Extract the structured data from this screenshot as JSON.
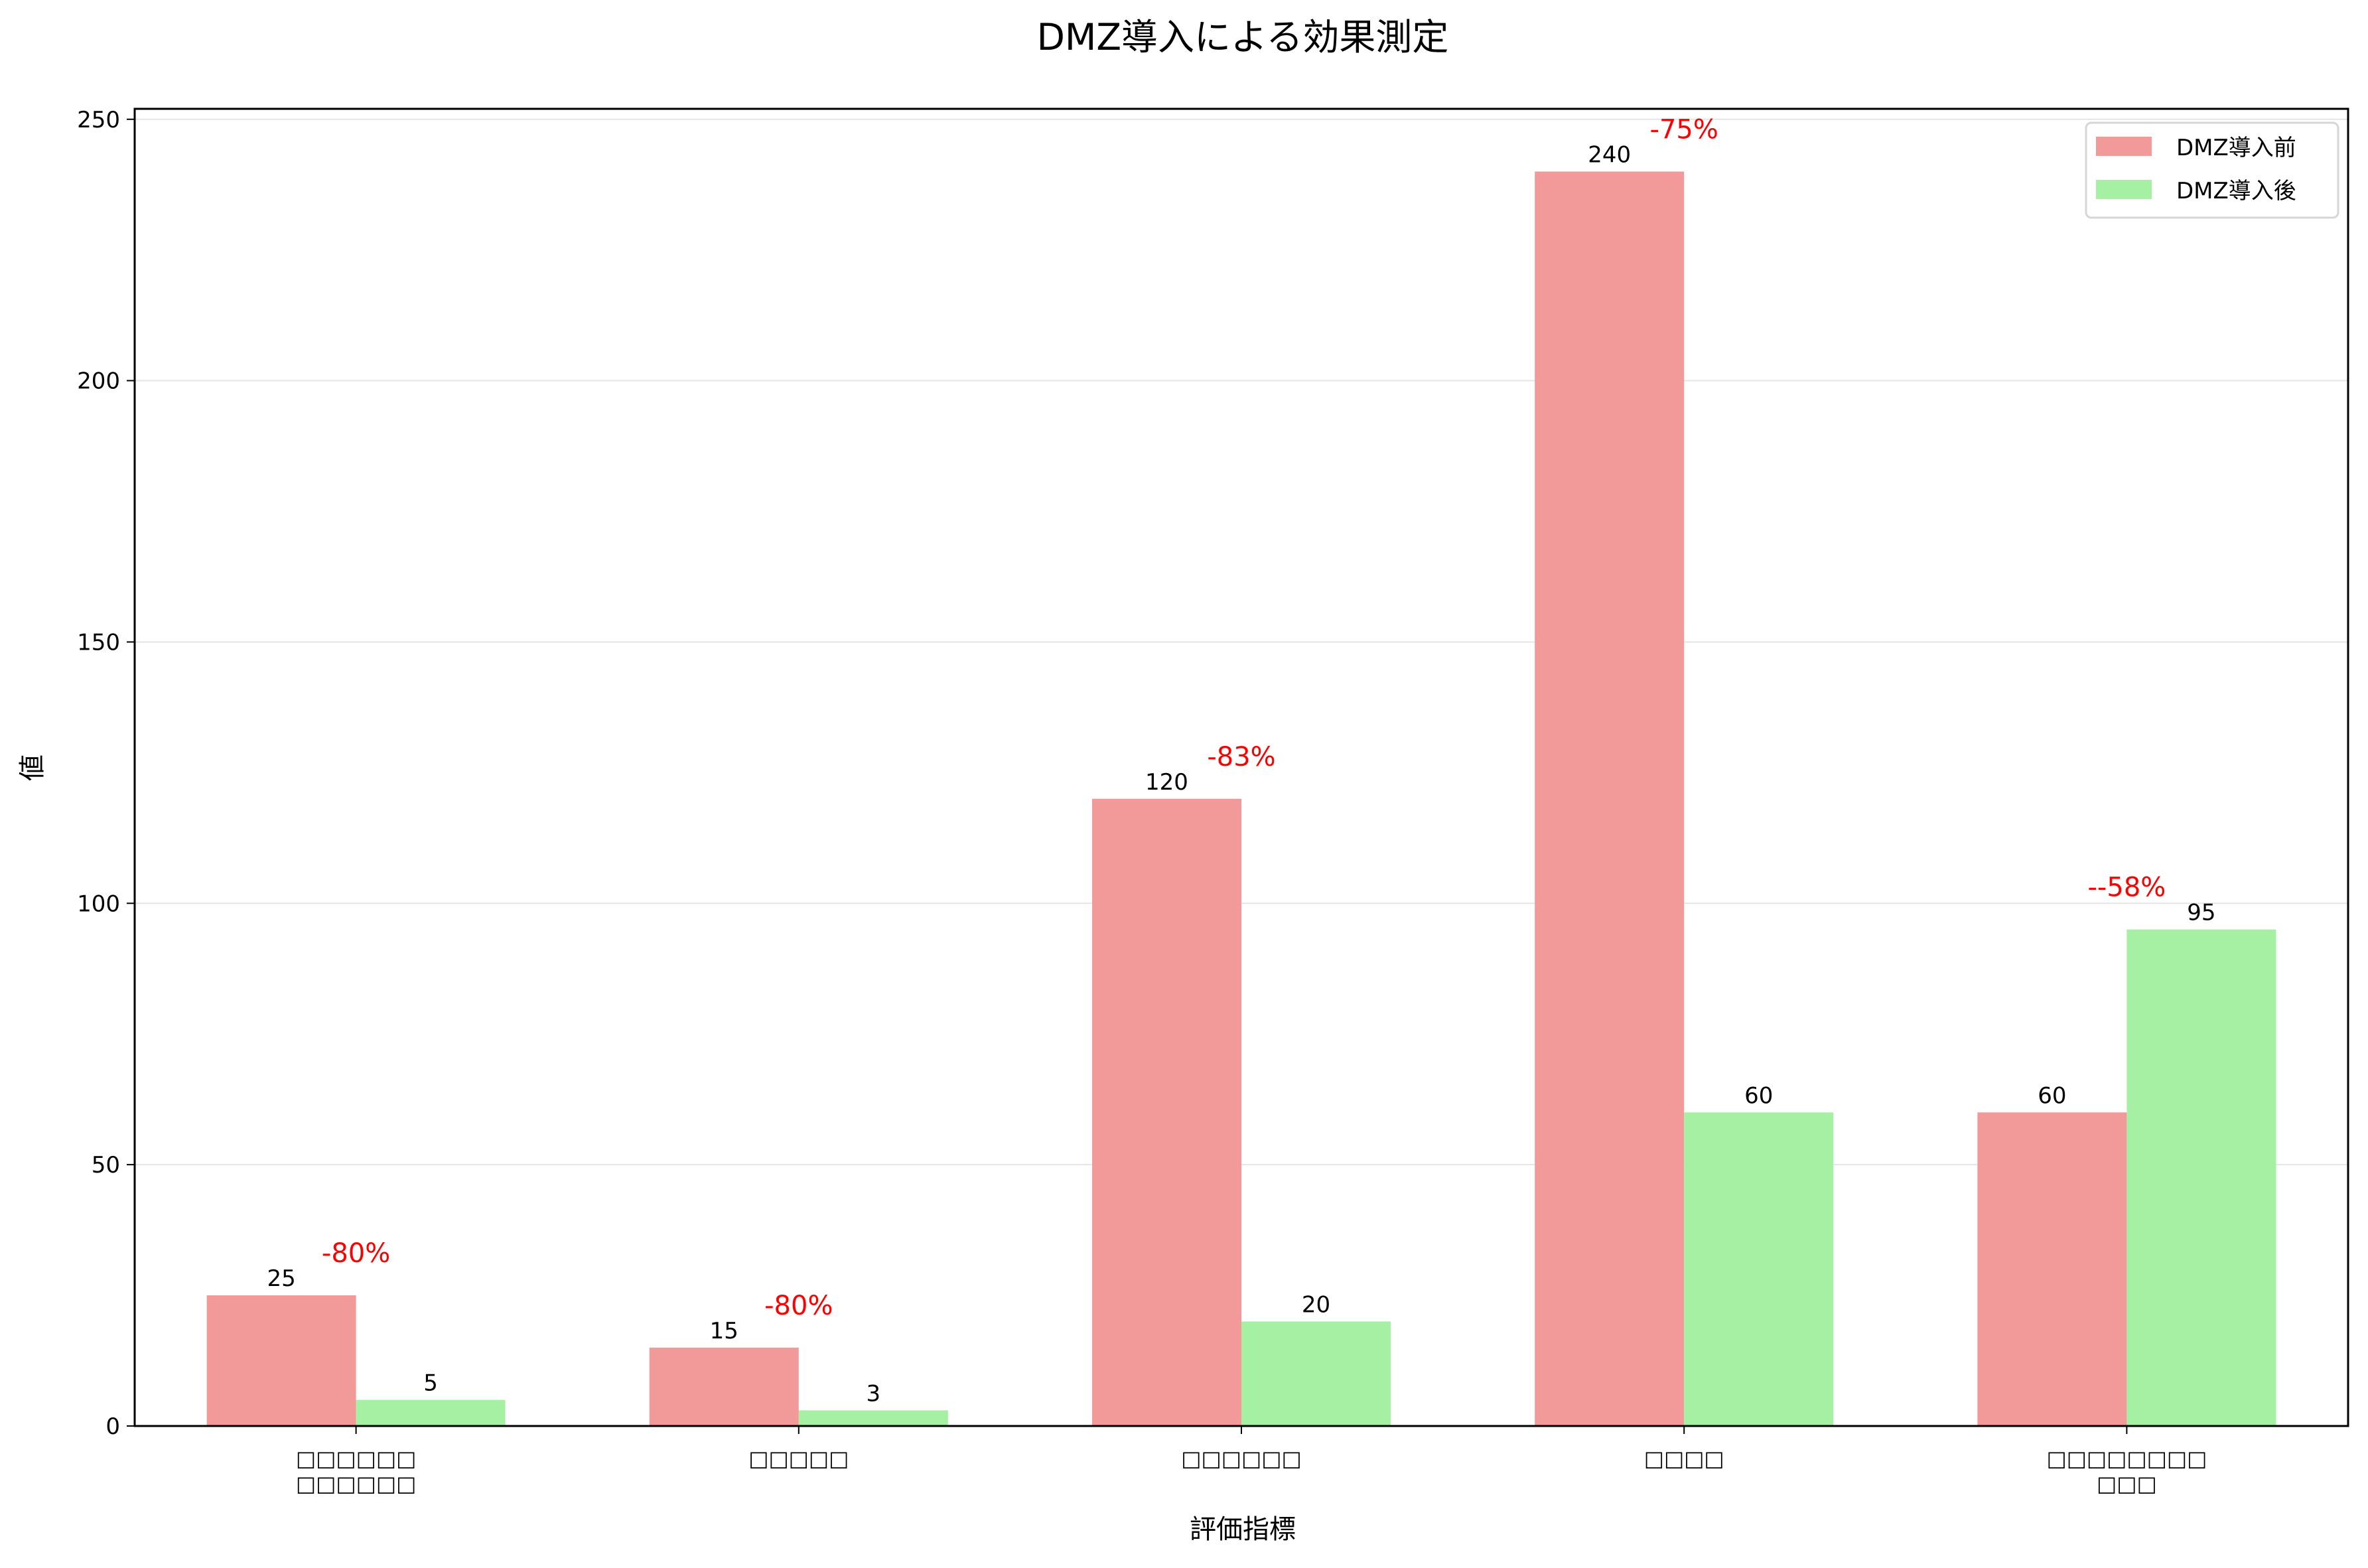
{
  "chart_data": {
    "type": "bar",
    "title": "DMZ導入による効果測定",
    "xlabel": "評価指標",
    "ylabel": "値",
    "categories": [
      "□□□□□□\n□□□□□□",
      "□□□□□",
      "□□□□□□",
      "□□□□",
      "□□□□□□□□\n□□□"
    ],
    "series": [
      {
        "name": "DMZ導入前",
        "color": "#f29a9a",
        "values": [
          25,
          15,
          120,
          240,
          60
        ]
      },
      {
        "name": "DMZ導入後",
        "color": "#a6f0a4",
        "values": [
          5,
          3,
          20,
          60,
          95
        ]
      }
    ],
    "annotations": [
      "-80%",
      "-80%",
      "-83%",
      "-75%",
      "--58%"
    ],
    "annotation_color": "#ff0000",
    "ylim": [
      0,
      252
    ],
    "yticks": [
      0,
      50,
      100,
      150,
      200,
      250
    ],
    "grid": true,
    "legend": "top-right"
  }
}
